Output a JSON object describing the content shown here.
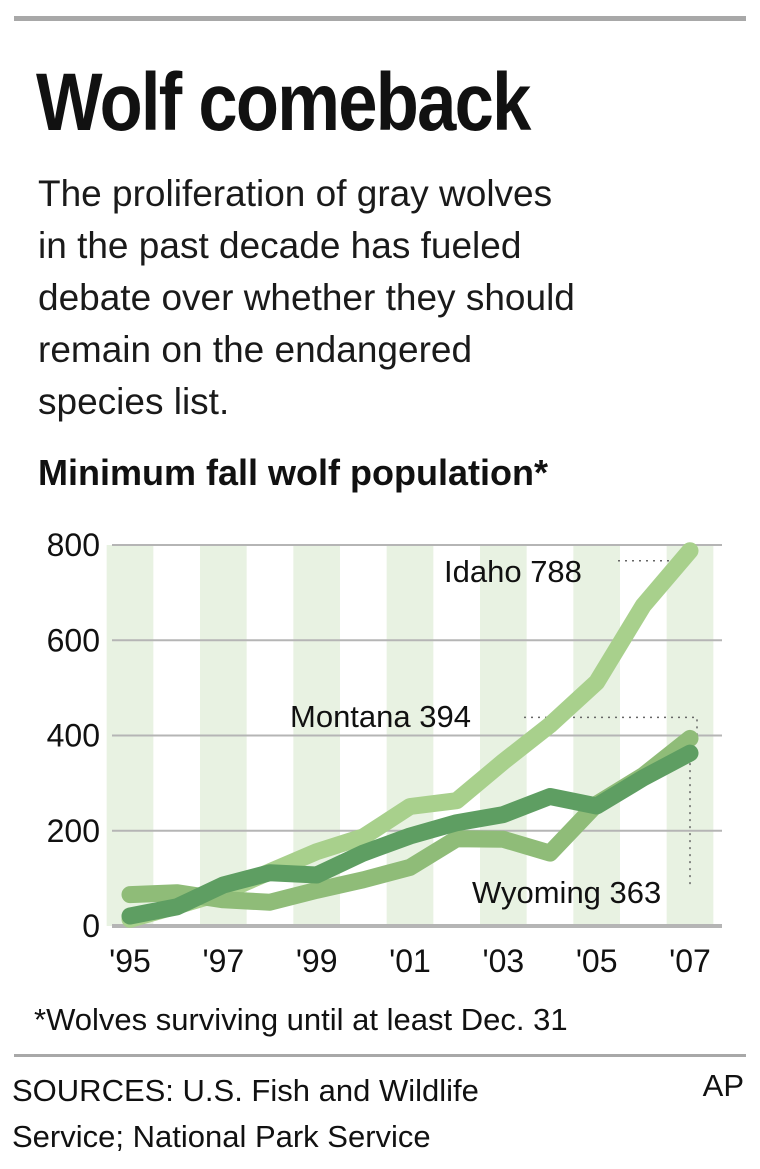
{
  "header": {
    "title": "Wolf comeback",
    "description_lines": [
      "The proliferation of gray wolves",
      "in the past decade has fueled",
      "debate over whether they should",
      "remain on the endangered",
      "species list."
    ],
    "chart_title": "Minimum fall wolf population*"
  },
  "footer": {
    "footnote": "*Wolves surviving until at least Dec. 31",
    "sources_lines": [
      "SOURCES: U.S. Fish and Wildlife",
      "Service; National Park Service"
    ],
    "credit": "AP"
  },
  "colors": {
    "idaho": "#a8d08c",
    "montana": "#8fbc78",
    "wyoming": "#5e9e62",
    "band": "#e8f2e2",
    "grid": "#b5b5b5"
  },
  "chart_data": {
    "type": "line",
    "title": "Minimum fall wolf population*",
    "xlabel": "",
    "ylabel": "",
    "x": [
      1995,
      1996,
      1997,
      1998,
      1999,
      2000,
      2001,
      2002,
      2003,
      2004,
      2005,
      2006,
      2007
    ],
    "x_tick_labels": [
      "'95",
      "'97",
      "'99",
      "'01",
      "'03",
      "'05",
      "'07"
    ],
    "y_ticks": [
      0,
      200,
      400,
      600,
      800
    ],
    "ylim": [
      0,
      800
    ],
    "grid": true,
    "series": [
      {
        "name": "Idaho",
        "end_label": "Idaho 788",
        "values": [
          14,
          42,
          71,
          114,
          156,
          187,
          251,
          263,
          345,
          422,
          512,
          673,
          788
        ]
      },
      {
        "name": "Montana",
        "end_label": "Montana 394",
        "values": [
          66,
          70,
          55,
          50,
          75,
          97,
          123,
          183,
          182,
          153,
          256,
          316,
          394
        ]
      },
      {
        "name": "Wyoming",
        "end_label": "Wyoming 363",
        "values": [
          21,
          40,
          86,
          112,
          107,
          153,
          189,
          217,
          234,
          272,
          252,
          311,
          363
        ]
      }
    ],
    "annotations": [
      "Idaho 788",
      "Montana 394",
      "Wyoming 363"
    ]
  }
}
